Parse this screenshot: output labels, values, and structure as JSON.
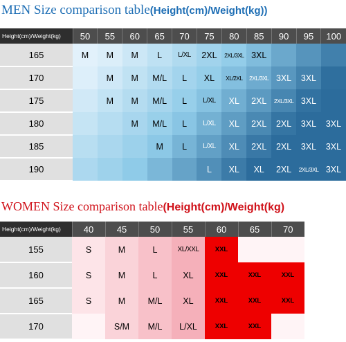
{
  "men": {
    "title_prefix": "MEN Size comparison table",
    "title_suffix": "(Height(cm)/Weight(kg))",
    "corner": "Height(cm)/Weight(kg)",
    "weights": [
      "50",
      "55",
      "60",
      "65",
      "70",
      "75",
      "80",
      "85",
      "90",
      "95",
      "100"
    ],
    "rows": [
      {
        "height": "165",
        "cells": [
          "M",
          "M",
          "M",
          "L",
          "L/XL",
          "2XL",
          "2XL/3XL",
          "3XL",
          "",
          "",
          ""
        ]
      },
      {
        "height": "170",
        "cells": [
          "",
          "M",
          "M",
          "M/L",
          "L",
          "XL",
          "XL/2XL",
          "2XL/3XL",
          "3XL",
          "3XL",
          ""
        ]
      },
      {
        "height": "175",
        "cells": [
          "",
          "M",
          "M",
          "M/L",
          "L",
          "L/XL",
          "XL",
          "2XL",
          "2XL/3XL",
          "3XL",
          ""
        ]
      },
      {
        "height": "180",
        "cells": [
          "",
          "",
          "M",
          "M/L",
          "L",
          "L/XL",
          "XL",
          "2XL",
          "2XL",
          "3XL",
          "3XL"
        ]
      },
      {
        "height": "185",
        "cells": [
          "",
          "",
          "",
          "M",
          "L",
          "L/XL",
          "XL",
          "2XL",
          "2XL",
          "3XL",
          "3XL"
        ]
      },
      {
        "height": "190",
        "cells": [
          "",
          "",
          "",
          "",
          "",
          "L",
          "XL",
          "XL",
          "2XL",
          "2XL/3XL",
          "3XL"
        ]
      }
    ]
  },
  "women": {
    "title_prefix": "WOMEN Size comparison table",
    "title_suffix": "(Height(cm)/Weight(kg)",
    "corner": "Height(cm)/Weight(kg)",
    "weights": [
      "40",
      "45",
      "50",
      "55",
      "60",
      "65",
      "70"
    ],
    "rows": [
      {
        "height": "155",
        "cells": [
          "S",
          "M",
          "L",
          "XL/XXL",
          "XXL",
          "",
          ""
        ]
      },
      {
        "height": "160",
        "cells": [
          "S",
          "M",
          "L",
          "XL",
          "XXL",
          "XXL",
          "XXL"
        ]
      },
      {
        "height": "165",
        "cells": [
          "S",
          "M",
          "M/L",
          "XL",
          "XXL",
          "XXL",
          "XXL"
        ]
      },
      {
        "height": "170",
        "cells": [
          "",
          "S/M",
          "M/L",
          "L/XL",
          "XXL",
          "XXL",
          ""
        ]
      }
    ]
  },
  "colors": {
    "men_light": "#e2f1fb",
    "men_mid": "#8fcbe8",
    "men_dark": "#2c6c9c",
    "women_light": "#fde4e8",
    "women_mid": "#f4a7b2",
    "women_red": "#ee0000"
  }
}
